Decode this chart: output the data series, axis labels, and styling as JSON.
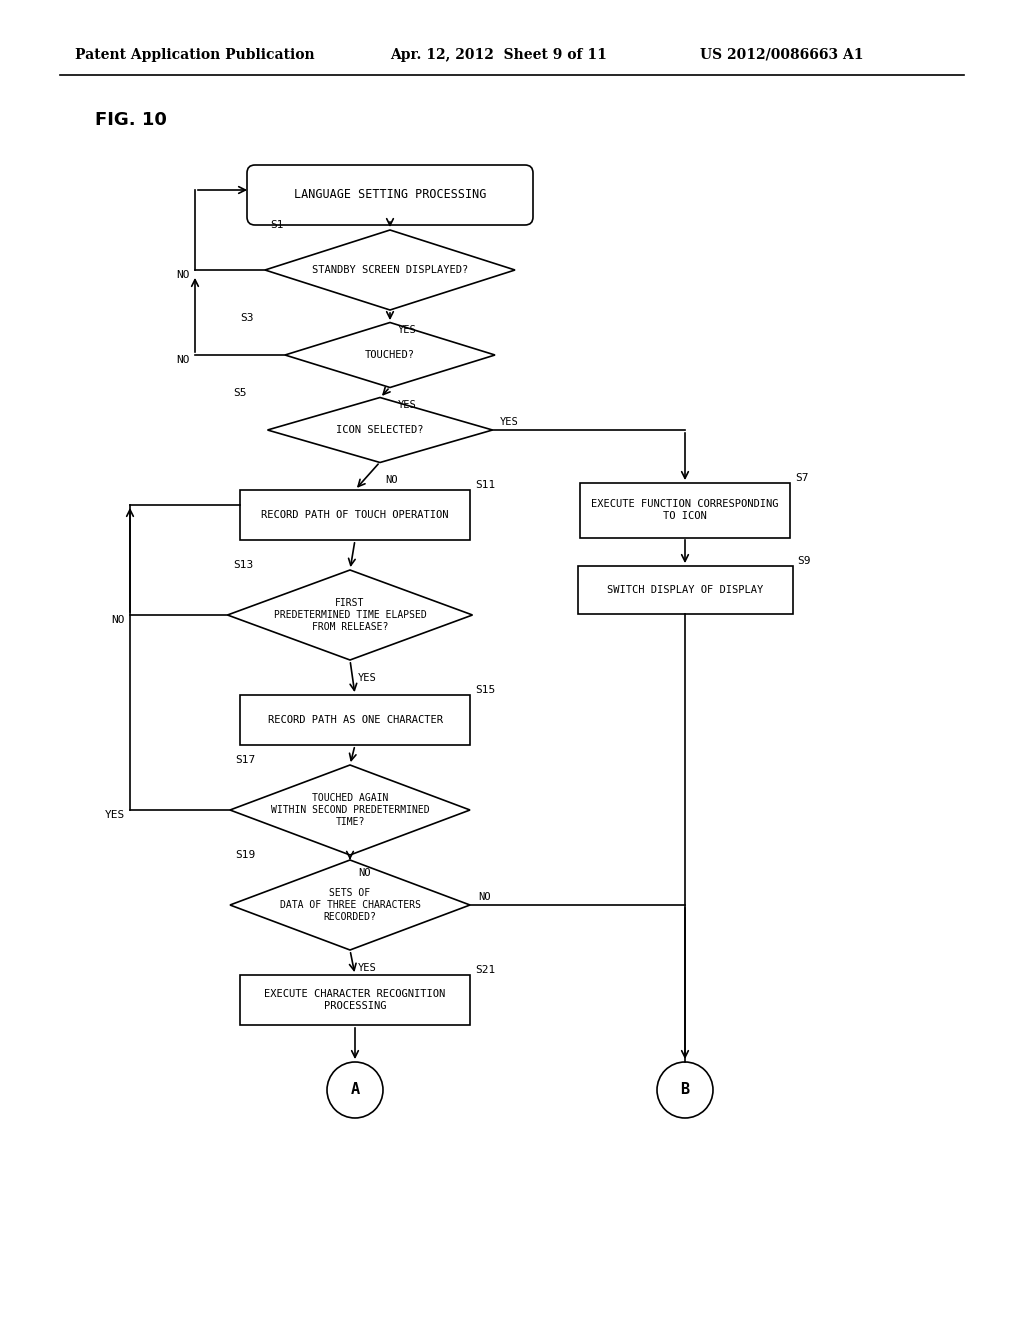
{
  "header_left": "Patent Application Publication",
  "header_center": "Apr. 12, 2012  Sheet 9 of 11",
  "header_right": "US 2012/0086663 A1",
  "fig_label": "FIG. 10",
  "bg_color": "#ffffff",
  "lw": 1.2,
  "start_label": "LANGUAGE SETTING PROCESSING",
  "s1_label": "STANDBY SCREEN DISPLAYED?",
  "s3_label": "TOUCHED?",
  "s5_label": "ICON SELECTED?",
  "s11_label": "RECORD PATH OF TOUCH OPERATION",
  "s7_label": "EXECUTE FUNCTION CORRESPONDING\nTO ICON",
  "s13_label": "FIRST\nPREDETERMINED TIME ELAPSED\nFROM RELEASE?",
  "s9_label": "SWITCH DISPLAY OF DISPLAY",
  "s15_label": "RECORD PATH AS ONE CHARACTER",
  "s17_label": "TOUCHED AGAIN\nWITHIN SECOND PREDETERMINED\nTIME?",
  "s19_label": "SETS OF\nDATA OF THREE CHARACTERS\nRECORDED?",
  "s21_label": "EXECUTE CHARACTER RECOGNITION\nPROCESSING",
  "termA": "A",
  "termB": "B"
}
